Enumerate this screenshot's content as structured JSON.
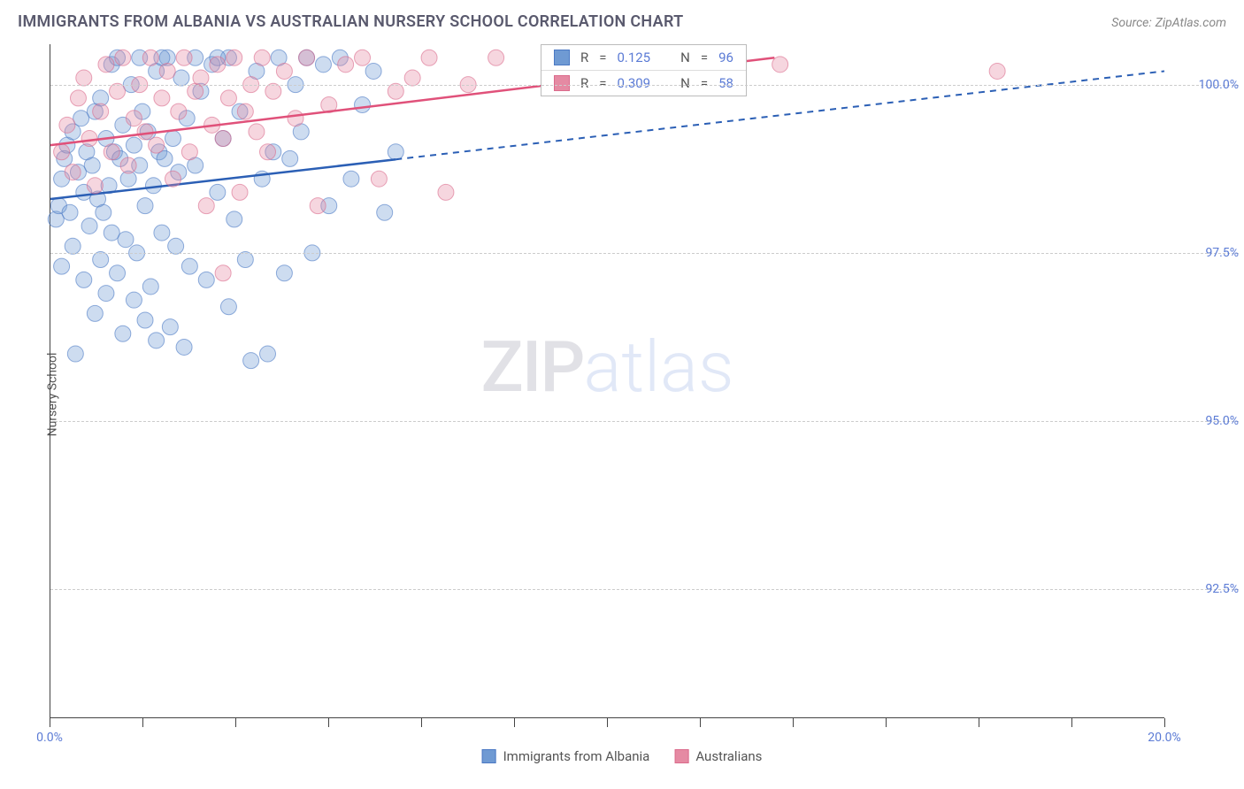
{
  "title": "IMMIGRANTS FROM ALBANIA VS AUSTRALIAN NURSERY SCHOOL CORRELATION CHART",
  "source_label": "Source:",
  "source_name": "ZipAtlas.com",
  "ylabel": "Nursery School",
  "watermark_zip": "ZIP",
  "watermark_atlas": "atlas",
  "chart": {
    "type": "scatter",
    "xlim": [
      0,
      20
    ],
    "ylim": [
      90.6,
      100.6
    ],
    "x_ticks": [
      0,
      1.67,
      3.33,
      5.0,
      6.67,
      8.33,
      10.0,
      11.67,
      13.33,
      15.0,
      16.67,
      18.33,
      20.0
    ],
    "x_tick_labels": {
      "0": "0.0%",
      "20": "20.0%"
    },
    "y_ticks": [
      92.5,
      95.0,
      97.5,
      100.0
    ],
    "y_tick_labels": [
      "92.5%",
      "95.0%",
      "97.5%",
      "100.0%"
    ],
    "background_color": "#ffffff",
    "grid_color": "#cccccc",
    "marker_radius": 9,
    "marker_opacity": 0.35,
    "series": [
      {
        "name": "Immigrants from Albania",
        "color": "#6f9ad3",
        "stroke": "#4b79c4",
        "line_color": "#2b5fb5",
        "R": "0.125",
        "N": "96",
        "trend": {
          "x1": 0,
          "y1": 98.3,
          "x2": 20,
          "y2": 100.2,
          "solid_until_x": 6.2
        },
        "points": [
          [
            0.1,
            98.0
          ],
          [
            0.15,
            98.2
          ],
          [
            0.2,
            97.3
          ],
          [
            0.2,
            98.6
          ],
          [
            0.25,
            98.9
          ],
          [
            0.3,
            99.1
          ],
          [
            0.35,
            98.1
          ],
          [
            0.4,
            99.3
          ],
          [
            0.4,
            97.6
          ],
          [
            0.45,
            96.0
          ],
          [
            0.5,
            98.7
          ],
          [
            0.55,
            99.5
          ],
          [
            0.6,
            98.4
          ],
          [
            0.6,
            97.1
          ],
          [
            0.65,
            99.0
          ],
          [
            0.7,
            97.9
          ],
          [
            0.75,
            98.8
          ],
          [
            0.8,
            99.6
          ],
          [
            0.8,
            96.6
          ],
          [
            0.85,
            98.3
          ],
          [
            0.9,
            99.8
          ],
          [
            0.9,
            97.4
          ],
          [
            0.95,
            98.1
          ],
          [
            1.0,
            99.2
          ],
          [
            1.0,
            96.9
          ],
          [
            1.05,
            98.5
          ],
          [
            1.1,
            100.3
          ],
          [
            1.1,
            97.8
          ],
          [
            1.15,
            99.0
          ],
          [
            1.2,
            97.2
          ],
          [
            1.25,
            98.9
          ],
          [
            1.3,
            96.3
          ],
          [
            1.3,
            99.4
          ],
          [
            1.35,
            97.7
          ],
          [
            1.4,
            98.6
          ],
          [
            1.45,
            100.0
          ],
          [
            1.5,
            96.8
          ],
          [
            1.5,
            99.1
          ],
          [
            1.55,
            97.5
          ],
          [
            1.6,
            98.8
          ],
          [
            1.65,
            99.6
          ],
          [
            1.7,
            96.5
          ],
          [
            1.7,
            98.2
          ],
          [
            1.75,
            99.3
          ],
          [
            1.8,
            97.0
          ],
          [
            1.85,
            98.5
          ],
          [
            1.9,
            100.2
          ],
          [
            1.9,
            96.2
          ],
          [
            1.95,
            99.0
          ],
          [
            2.0,
            97.8
          ],
          [
            2.05,
            98.9
          ],
          [
            2.1,
            100.4
          ],
          [
            2.15,
            96.4
          ],
          [
            2.2,
            99.2
          ],
          [
            2.25,
            97.6
          ],
          [
            2.3,
            98.7
          ],
          [
            2.35,
            100.1
          ],
          [
            2.4,
            96.1
          ],
          [
            2.45,
            99.5
          ],
          [
            2.5,
            97.3
          ],
          [
            2.6,
            98.8
          ],
          [
            2.7,
            99.9
          ],
          [
            2.8,
            97.1
          ],
          [
            2.9,
            100.3
          ],
          [
            3.0,
            98.4
          ],
          [
            3.1,
            99.2
          ],
          [
            3.2,
            96.7
          ],
          [
            3.2,
            100.4
          ],
          [
            3.3,
            98.0
          ],
          [
            3.4,
            99.6
          ],
          [
            3.5,
            97.4
          ],
          [
            3.6,
            95.9
          ],
          [
            3.7,
            100.2
          ],
          [
            3.8,
            98.6
          ],
          [
            3.9,
            96.0
          ],
          [
            4.0,
            99.0
          ],
          [
            4.1,
            100.4
          ],
          [
            4.2,
            97.2
          ],
          [
            4.3,
            98.9
          ],
          [
            4.4,
            100.0
          ],
          [
            4.5,
            99.3
          ],
          [
            4.7,
            97.5
          ],
          [
            4.9,
            100.3
          ],
          [
            5.0,
            98.2
          ],
          [
            5.2,
            100.4
          ],
          [
            5.4,
            98.6
          ],
          [
            5.6,
            99.7
          ],
          [
            5.8,
            100.2
          ],
          [
            6.0,
            98.1
          ],
          [
            6.2,
            99.0
          ],
          [
            4.6,
            100.4
          ],
          [
            3.0,
            100.4
          ],
          [
            2.6,
            100.4
          ],
          [
            2.0,
            100.4
          ],
          [
            1.6,
            100.4
          ],
          [
            1.2,
            100.4
          ]
        ]
      },
      {
        "name": "Australians",
        "color": "#e58aa3",
        "stroke": "#db6b8c",
        "line_color": "#e0517a",
        "R": "0.309",
        "N": "58",
        "trend": {
          "x1": 0,
          "y1": 99.1,
          "x2": 13,
          "y2": 100.4,
          "solid_until_x": 13
        },
        "points": [
          [
            0.2,
            99.0
          ],
          [
            0.3,
            99.4
          ],
          [
            0.4,
            98.7
          ],
          [
            0.5,
            99.8
          ],
          [
            0.6,
            100.1
          ],
          [
            0.7,
            99.2
          ],
          [
            0.8,
            98.5
          ],
          [
            0.9,
            99.6
          ],
          [
            1.0,
            100.3
          ],
          [
            1.1,
            99.0
          ],
          [
            1.2,
            99.9
          ],
          [
            1.3,
            100.4
          ],
          [
            1.4,
            98.8
          ],
          [
            1.5,
            99.5
          ],
          [
            1.6,
            100.0
          ],
          [
            1.7,
            99.3
          ],
          [
            1.8,
            100.4
          ],
          [
            1.9,
            99.1
          ],
          [
            2.0,
            99.8
          ],
          [
            2.1,
            100.2
          ],
          [
            2.2,
            98.6
          ],
          [
            2.3,
            99.6
          ],
          [
            2.4,
            100.4
          ],
          [
            2.5,
            99.0
          ],
          [
            2.6,
            99.9
          ],
          [
            2.7,
            100.1
          ],
          [
            2.8,
            98.2
          ],
          [
            2.9,
            99.4
          ],
          [
            3.0,
            100.3
          ],
          [
            3.1,
            99.2
          ],
          [
            3.2,
            99.8
          ],
          [
            3.3,
            100.4
          ],
          [
            3.4,
            98.4
          ],
          [
            3.5,
            99.6
          ],
          [
            3.6,
            100.0
          ],
          [
            3.7,
            99.3
          ],
          [
            3.8,
            100.4
          ],
          [
            3.9,
            99.0
          ],
          [
            4.0,
            99.9
          ],
          [
            4.2,
            100.2
          ],
          [
            4.4,
            99.5
          ],
          [
            4.6,
            100.4
          ],
          [
            4.8,
            98.2
          ],
          [
            5.0,
            99.7
          ],
          [
            5.3,
            100.3
          ],
          [
            5.6,
            100.4
          ],
          [
            5.9,
            98.6
          ],
          [
            6.2,
            99.9
          ],
          [
            6.5,
            100.1
          ],
          [
            6.8,
            100.4
          ],
          [
            7.1,
            98.4
          ],
          [
            7.5,
            100.0
          ],
          [
            8.0,
            100.4
          ],
          [
            3.1,
            97.2
          ],
          [
            11.5,
            100.4
          ],
          [
            12.0,
            100.2
          ],
          [
            13.1,
            100.3
          ],
          [
            17.0,
            100.2
          ]
        ]
      }
    ]
  },
  "legend": {
    "series1_label": "Immigrants from Albania",
    "series2_label": "Australians"
  },
  "stats_labels": {
    "R": "R",
    "N": "N",
    "eq": "="
  }
}
